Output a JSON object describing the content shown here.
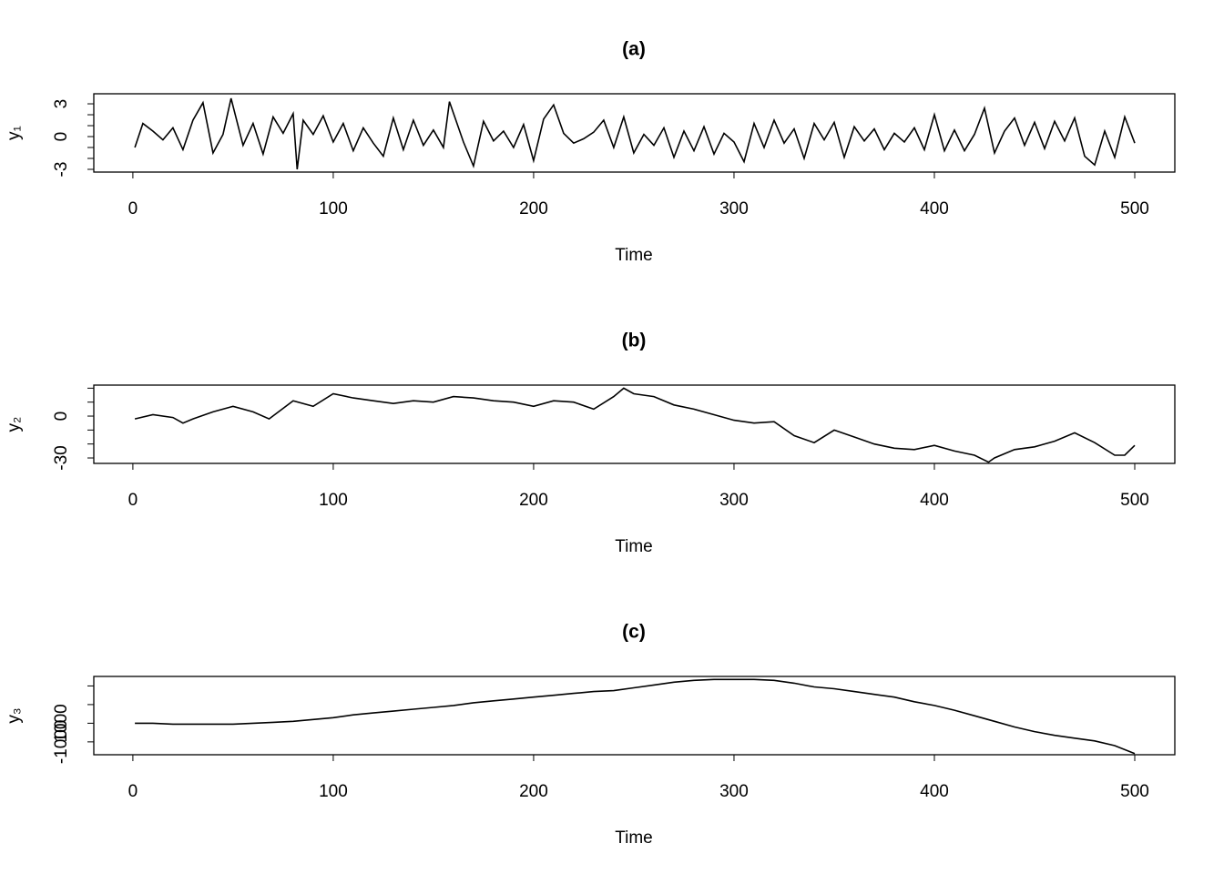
{
  "chart_data": [
    {
      "type": "line",
      "title": "(a)",
      "xlabel": "Time",
      "ylabel": "y₁",
      "color": "#000000",
      "x": [
        1,
        5,
        10,
        15,
        20,
        25,
        30,
        35,
        40,
        45,
        49,
        55,
        60,
        65,
        70,
        75,
        80,
        82,
        85,
        90,
        95,
        100,
        105,
        110,
        115,
        120,
        125,
        130,
        135,
        140,
        145,
        150,
        155,
        158,
        165,
        170,
        175,
        180,
        185,
        190,
        195,
        200,
        205,
        210,
        215,
        220,
        225,
        230,
        235,
        240,
        245,
        250,
        255,
        260,
        265,
        270,
        275,
        280,
        285,
        290,
        295,
        300,
        305,
        310,
        315,
        320,
        325,
        330,
        335,
        340,
        345,
        350,
        355,
        360,
        365,
        370,
        375,
        380,
        385,
        390,
        395,
        400,
        405,
        410,
        415,
        420,
        425,
        430,
        435,
        440,
        445,
        450,
        455,
        460,
        465,
        470,
        475,
        480,
        485,
        490,
        495,
        500
      ],
      "values": [
        -1,
        1.2,
        0.5,
        -0.3,
        0.8,
        -1.2,
        1.5,
        3.1,
        -1.5,
        0.2,
        3.5,
        -0.8,
        1.2,
        -1.6,
        1.8,
        0.3,
        2.1,
        -3,
        1.5,
        0.2,
        1.9,
        -0.5,
        1.2,
        -1.3,
        0.8,
        -0.6,
        -1.8,
        1.7,
        -1.2,
        1.5,
        -0.8,
        0.6,
        -1,
        3.2,
        -0.5,
        -2.7,
        1.4,
        -0.4,
        0.5,
        -1,
        1.1,
        -2.2,
        1.6,
        2.9,
        0.3,
        -0.6,
        -0.2,
        0.4,
        1.5,
        -1,
        1.8,
        -1.5,
        0.2,
        -0.8,
        0.8,
        -1.9,
        0.5,
        -1.3,
        0.9,
        -1.6,
        0.3,
        -0.5,
        -2.3,
        1.2,
        -1,
        1.5,
        -0.6,
        0.7,
        -2,
        1.2,
        -0.3,
        1.3,
        -1.9,
        0.9,
        -0.4,
        0.7,
        -1.2,
        0.3,
        -0.5,
        0.8,
        -1.2,
        2,
        -1.3,
        0.6,
        -1.3,
        0.2,
        2.6,
        -1.5,
        0.5,
        1.7,
        -0.8,
        1.3,
        -1.1,
        1.4,
        -0.4,
        1.7,
        -1.8,
        -2.6,
        0.5,
        -1.9,
        1.8,
        -0.6
      ],
      "xlim": [
        -19.5,
        520
      ],
      "ylim": [
        -3.25,
        3.92
      ],
      "xticks": [
        0,
        100,
        200,
        300,
        400,
        500
      ],
      "yticks": [
        -3,
        {
          "value": -2,
          "label": null
        },
        {
          "value": -1,
          "label": null
        },
        0,
        {
          "value": 1,
          "label": null
        },
        {
          "value": 2,
          "label": null
        },
        3
      ]
    },
    {
      "type": "line",
      "title": "(b)",
      "xlabel": "Time",
      "ylabel": "y₂",
      "color": "#000000",
      "x": [
        1,
        10,
        20,
        25,
        30,
        40,
        50,
        60,
        68,
        80,
        90,
        100,
        110,
        120,
        130,
        140,
        150,
        160,
        170,
        180,
        190,
        200,
        210,
        220,
        230,
        240,
        245,
        250,
        260,
        270,
        280,
        290,
        300,
        310,
        320,
        330,
        340,
        350,
        360,
        370,
        380,
        390,
        400,
        410,
        420,
        427,
        430,
        440,
        450,
        460,
        470,
        480,
        490,
        495,
        500
      ],
      "values": [
        -2,
        1,
        -1,
        -5,
        -2,
        3,
        7,
        3,
        -2,
        11,
        7,
        16,
        13,
        11,
        9,
        11,
        10,
        14,
        13,
        11,
        10,
        7,
        11,
        10,
        5,
        14,
        20,
        16,
        14,
        8,
        5,
        1,
        -3,
        -5,
        -4,
        -14,
        -19,
        -10,
        -15,
        -20,
        -23,
        -24,
        -21,
        -25,
        -28,
        -33,
        -30,
        -24,
        -22,
        -18,
        -12,
        -19,
        -28,
        -28,
        -21
      ],
      "xlim": [
        -19.5,
        520
      ],
      "ylim": [
        -33.9,
        22.2
      ],
      "xticks": [
        0,
        100,
        200,
        300,
        400,
        500
      ],
      "yticks": [
        -30,
        {
          "value": -20,
          "label": null
        },
        {
          "value": -10,
          "label": null
        },
        0,
        {
          "value": 10,
          "label": null
        },
        {
          "value": 20,
          "label": null
        }
      ]
    },
    {
      "type": "line",
      "title": "(c)",
      "xlabel": "Time",
      "ylabel": "y₃",
      "color": "#000000",
      "x": [
        1,
        10,
        20,
        30,
        40,
        50,
        60,
        70,
        80,
        90,
        100,
        110,
        120,
        130,
        140,
        150,
        160,
        170,
        180,
        190,
        200,
        210,
        220,
        230,
        240,
        250,
        260,
        270,
        280,
        290,
        300,
        310,
        320,
        330,
        340,
        350,
        360,
        370,
        380,
        390,
        400,
        410,
        420,
        430,
        440,
        450,
        460,
        470,
        480,
        490,
        500
      ],
      "values": [
        1000,
        1000,
        900,
        900,
        900,
        900,
        1000,
        1100,
        1200,
        1400,
        1600,
        1900,
        2100,
        2300,
        2500,
        2700,
        2900,
        3200,
        3400,
        3600,
        3800,
        4000,
        4200,
        4400,
        4500,
        4800,
        5100,
        5400,
        5600,
        5700,
        5700,
        5700,
        5600,
        5300,
        4900,
        4700,
        4400,
        4100,
        3800,
        3300,
        2900,
        2400,
        1800,
        1200,
        600,
        100,
        -300,
        -600,
        -900,
        -1400,
        -2250
      ],
      "xlim": [
        -19.5,
        520
      ],
      "ylim": [
        -2380,
        6020
      ],
      "xticks": [
        0,
        100,
        200,
        300,
        400,
        500
      ],
      "yticks": [
        -1000,
        {
          "value": 1000,
          "label": "1000"
        },
        {
          "value": 3000,
          "label": null
        },
        {
          "value": 5000,
          "label": null
        }
      ]
    }
  ]
}
